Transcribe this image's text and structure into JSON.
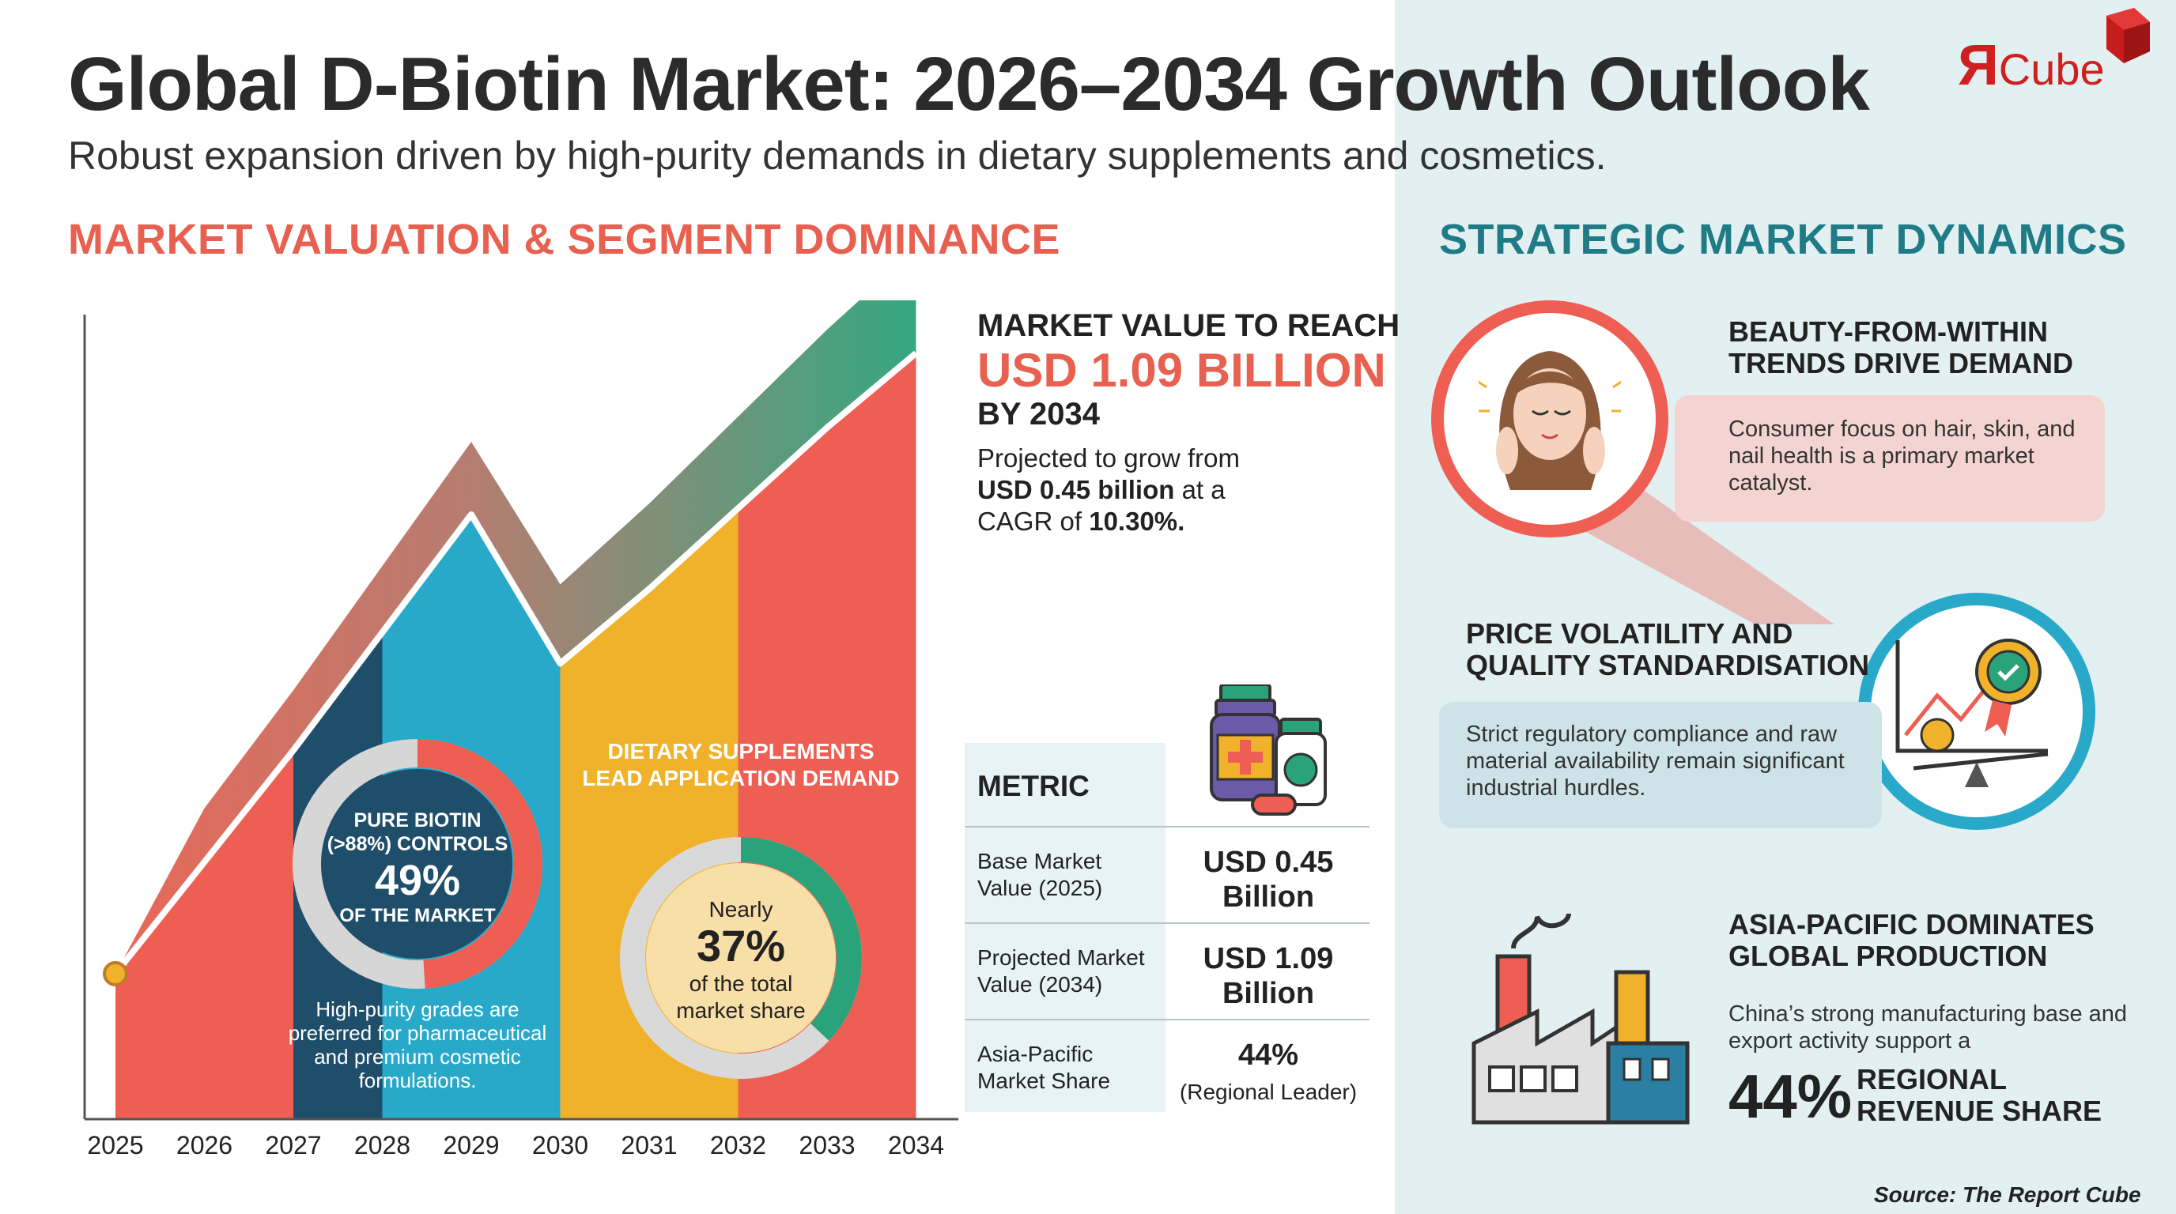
{
  "header": {
    "title": "Global D-Biotin Market: 2026–2034 Growth Outlook",
    "subtitle": "Robust expansion driven by high-purity demands in dietary supplements and cosmetics.",
    "logo": {
      "r": "Я",
      "word": "Cube",
      "color": "#d01f1f"
    }
  },
  "left_section": {
    "heading": "MARKET VALUATION & SEGMENT DOMINANCE",
    "purity": {
      "line1": "PURE BIOTIN",
      "line2": "(>88%) CONTROLS",
      "value": "49%",
      "line3": "OF THE MARKET",
      "note": [
        "High-purity grades are",
        "preferred for pharmaceutical",
        "and premium cosmetic",
        "formulations."
      ]
    },
    "supplements": {
      "heading": [
        "DIETARY SUPPLEMENTS",
        "LEAD APPLICATION DEMAND"
      ],
      "prefix": "Nearly",
      "value": "37%",
      "suffix": [
        "of the total",
        "market share"
      ]
    }
  },
  "headline": {
    "label": "MARKET VALUE TO REACH",
    "value": "USD 1.09 BILLION",
    "by": "BY 2034",
    "proj_prefix": "Projected to grow from",
    "proj_base": "USD 0.45 billion",
    "proj_mid": "at a",
    "proj_cagr_prefix": "CAGR of",
    "proj_cagr": "10.30%."
  },
  "table": {
    "header": "METRIC",
    "rows": [
      {
        "label": "Base Market Value (2025)",
        "value": "USD 0.45 Billion",
        "note": ""
      },
      {
        "label": "Projected Market Value (2034)",
        "value": "USD 1.09 Billion",
        "note": ""
      },
      {
        "label": "Asia-Pacific Market Share",
        "value": "44%",
        "note": "(Regional Leader)"
      }
    ]
  },
  "right_section": {
    "heading": "STRATEGIC MARKET DYNAMICS",
    "dynamics": [
      {
        "title": [
          "BEAUTY-FROM-WITHIN",
          "TRENDS DRIVE DEMAND"
        ],
        "body": "Consumer focus on hair, skin, and nail health is a primary market catalyst.",
        "icon": "woman-face-icon"
      },
      {
        "title": [
          "PRICE VOLATILITY AND",
          "QUALITY STANDARDISATION"
        ],
        "body": "Strict regulatory compliance and raw material availability remain significant industrial hurdles.",
        "icon": "scale-certificate-icon"
      },
      {
        "title": [
          "ASIA-PACIFIC DOMINATES",
          "GLOBAL PRODUCTION"
        ],
        "body": "China’s strong manufacturing base and export activity support a",
        "stat": "44%",
        "stat_label": [
          "REGIONAL",
          "REVENUE SHARE"
        ],
        "icon": "factory-icon"
      }
    ]
  },
  "source": "Source: The Report Cube",
  "chart_data": {
    "type": "area",
    "x": [
      "2025",
      "2026",
      "2027",
      "2028",
      "2029",
      "2030",
      "2031",
      "2032",
      "2033",
      "2034"
    ],
    "start_value": 0.45,
    "end_value": 1.09,
    "segments": [
      {
        "from": "2025",
        "to": "2027",
        "color": "#ef5e52"
      },
      {
        "from": "2027",
        "to": "2028",
        "color": "#1f4e6a"
      },
      {
        "from": "2028",
        "to": "2030",
        "color": "#29a9c9"
      },
      {
        "from": "2030",
        "to": "2032",
        "color": "#f0b22a"
      },
      {
        "from": "2032",
        "to": "2034",
        "color": "#ef5e52"
      }
    ],
    "purity_share": 49,
    "supplement_share": 37,
    "colors": {
      "trend_start": "#e8604f",
      "trend_end": "#2aa37a",
      "axis": "#555555",
      "purity_ring": "#ef5e52",
      "supplement_ring": "#2aa37a"
    }
  }
}
